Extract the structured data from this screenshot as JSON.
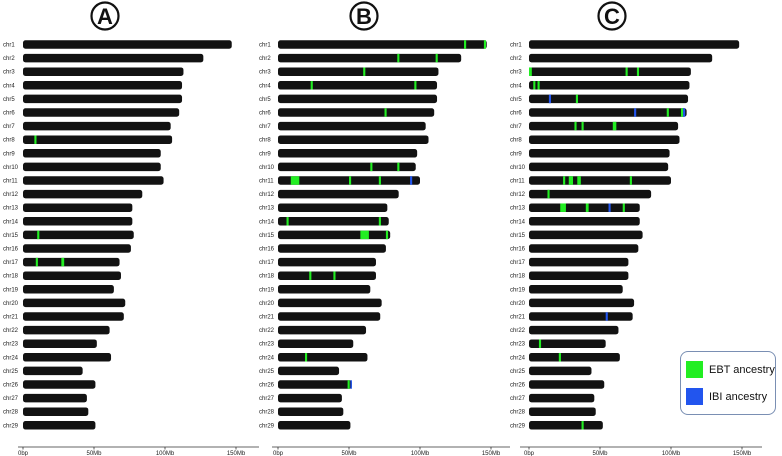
{
  "panels": [
    {
      "letter": "A",
      "chromosomes": [
        {
          "name": "chr1",
          "len": 147,
          "segs": []
        },
        {
          "name": "chr2",
          "len": 127,
          "segs": []
        },
        {
          "name": "chr3",
          "len": 113,
          "segs": []
        },
        {
          "name": "chr4",
          "len": 112,
          "segs": []
        },
        {
          "name": "chr5",
          "len": 112,
          "segs": []
        },
        {
          "name": "chr6",
          "len": 110,
          "segs": []
        },
        {
          "name": "chr7",
          "len": 104,
          "segs": []
        },
        {
          "name": "chr8",
          "len": 105,
          "segs": [
            {
              "s": 8,
              "e": 9.5,
              "t": "EBT"
            }
          ]
        },
        {
          "name": "chr9",
          "len": 97,
          "segs": []
        },
        {
          "name": "chr10",
          "len": 97,
          "segs": []
        },
        {
          "name": "chr11",
          "len": 99,
          "segs": []
        },
        {
          "name": "chr12",
          "len": 84,
          "segs": []
        },
        {
          "name": "chr13",
          "len": 77,
          "segs": []
        },
        {
          "name": "chr14",
          "len": 77,
          "segs": []
        },
        {
          "name": "chr15",
          "len": 78,
          "segs": [
            {
              "s": 10,
              "e": 11.5,
              "t": "EBT"
            }
          ]
        },
        {
          "name": "chr16",
          "len": 76,
          "segs": []
        },
        {
          "name": "chr17",
          "len": 68,
          "segs": [
            {
              "s": 9,
              "e": 10.5,
              "t": "EBT"
            },
            {
              "s": 27,
              "e": 29,
              "t": "EBT"
            }
          ]
        },
        {
          "name": "chr18",
          "len": 69,
          "segs": []
        },
        {
          "name": "chr19",
          "len": 64,
          "segs": []
        },
        {
          "name": "chr20",
          "len": 72,
          "segs": []
        },
        {
          "name": "chr21",
          "len": 71,
          "segs": []
        },
        {
          "name": "chr22",
          "len": 61,
          "segs": []
        },
        {
          "name": "chr23",
          "len": 52,
          "segs": []
        },
        {
          "name": "chr24",
          "len": 62,
          "segs": []
        },
        {
          "name": "chr25",
          "len": 42,
          "segs": []
        },
        {
          "name": "chr26",
          "len": 51,
          "segs": []
        },
        {
          "name": "chr27",
          "len": 45,
          "segs": []
        },
        {
          "name": "chr28",
          "len": 46,
          "segs": []
        },
        {
          "name": "chr29",
          "len": 51,
          "segs": []
        }
      ]
    },
    {
      "letter": "B",
      "chromosomes": [
        {
          "name": "chr1",
          "len": 147,
          "segs": [
            {
              "s": 131,
              "e": 132.5,
              "t": "EBT"
            },
            {
              "s": 145,
              "e": 146.5,
              "t": "EBT"
            }
          ]
        },
        {
          "name": "chr2",
          "len": 129,
          "segs": [
            {
              "s": 84,
              "e": 85.5,
              "t": "EBT"
            },
            {
              "s": 111,
              "e": 112.5,
              "t": "EBT"
            }
          ]
        },
        {
          "name": "chr3",
          "len": 113,
          "segs": [
            {
              "s": 60,
              "e": 61.5,
              "t": "EBT"
            }
          ]
        },
        {
          "name": "chr4",
          "len": 112,
          "segs": [
            {
              "s": 23,
              "e": 24.5,
              "t": "EBT"
            },
            {
              "s": 96,
              "e": 97.5,
              "t": "EBT"
            }
          ]
        },
        {
          "name": "chr5",
          "len": 112,
          "segs": []
        },
        {
          "name": "chr6",
          "len": 110,
          "segs": [
            {
              "s": 75,
              "e": 76.5,
              "t": "EBT"
            }
          ]
        },
        {
          "name": "chr7",
          "len": 104,
          "segs": []
        },
        {
          "name": "chr8",
          "len": 106,
          "segs": []
        },
        {
          "name": "chr9",
          "len": 98,
          "segs": []
        },
        {
          "name": "chr10",
          "len": 97,
          "segs": [
            {
              "s": 65,
              "e": 66.5,
              "t": "EBT"
            },
            {
              "s": 84,
              "e": 85.5,
              "t": "EBT"
            }
          ]
        },
        {
          "name": "chr11",
          "len": 100,
          "segs": [
            {
              "s": 9,
              "e": 15,
              "t": "EBT"
            },
            {
              "s": 50,
              "e": 51.5,
              "t": "EBT"
            },
            {
              "s": 71,
              "e": 72.5,
              "t": "EBT"
            },
            {
              "s": 93,
              "e": 94.5,
              "t": "IBI"
            }
          ]
        },
        {
          "name": "chr12",
          "len": 85,
          "segs": []
        },
        {
          "name": "chr13",
          "len": 77,
          "segs": []
        },
        {
          "name": "chr14",
          "len": 78,
          "segs": [
            {
              "s": 6,
              "e": 7.5,
              "t": "EBT"
            },
            {
              "s": 71,
              "e": 72.5,
              "t": "EBT"
            }
          ]
        },
        {
          "name": "chr15",
          "len": 79,
          "segs": [
            {
              "s": 58,
              "e": 64,
              "t": "EBT"
            },
            {
              "s": 76,
              "e": 77.5,
              "t": "EBT"
            }
          ]
        },
        {
          "name": "chr16",
          "len": 76,
          "segs": []
        },
        {
          "name": "chr17",
          "len": 69,
          "segs": []
        },
        {
          "name": "chr18",
          "len": 69,
          "segs": [
            {
              "s": 22,
              "e": 23.5,
              "t": "EBT"
            },
            {
              "s": 39,
              "e": 40.5,
              "t": "EBT"
            }
          ]
        },
        {
          "name": "chr19",
          "len": 65,
          "segs": []
        },
        {
          "name": "chr20",
          "len": 73,
          "segs": []
        },
        {
          "name": "chr21",
          "len": 72,
          "segs": []
        },
        {
          "name": "chr22",
          "len": 62,
          "segs": []
        },
        {
          "name": "chr23",
          "len": 53,
          "segs": []
        },
        {
          "name": "chr24",
          "len": 63,
          "segs": [
            {
              "s": 19,
              "e": 20.5,
              "t": "EBT"
            }
          ]
        },
        {
          "name": "chr25",
          "len": 43,
          "segs": []
        },
        {
          "name": "chr26",
          "len": 52,
          "segs": [
            {
              "s": 49,
              "e": 50.5,
              "t": "EBT"
            },
            {
              "s": 51,
              "e": 52,
              "t": "IBI"
            }
          ]
        },
        {
          "name": "chr27",
          "len": 45,
          "segs": []
        },
        {
          "name": "chr28",
          "len": 46,
          "segs": []
        },
        {
          "name": "chr29",
          "len": 51,
          "segs": []
        }
      ]
    },
    {
      "letter": "C",
      "chromosomes": [
        {
          "name": "chr1",
          "len": 148,
          "segs": []
        },
        {
          "name": "chr2",
          "len": 129,
          "segs": []
        },
        {
          "name": "chr3",
          "len": 114,
          "segs": [
            {
              "s": 0,
              "e": 2,
              "t": "EBT"
            },
            {
              "s": 68,
              "e": 69.5,
              "t": "EBT"
            },
            {
              "s": 76,
              "e": 77.5,
              "t": "EBT"
            }
          ]
        },
        {
          "name": "chr4",
          "len": 113,
          "segs": [
            {
              "s": 3,
              "e": 4.5,
              "t": "EBT"
            },
            {
              "s": 6,
              "e": 7.5,
              "t": "EBT"
            }
          ]
        },
        {
          "name": "chr5",
          "len": 112,
          "segs": [
            {
              "s": 14,
              "e": 15.5,
              "t": "IBI"
            },
            {
              "s": 33,
              "e": 34.5,
              "t": "EBT"
            }
          ]
        },
        {
          "name": "chr6",
          "len": 111,
          "segs": [
            {
              "s": 74,
              "e": 75.5,
              "t": "IBI"
            },
            {
              "s": 97,
              "e": 98.5,
              "t": "EBT"
            },
            {
              "s": 107,
              "e": 108.5,
              "t": "EBT"
            },
            {
              "s": 108.5,
              "e": 110,
              "t": "IBI"
            }
          ]
        },
        {
          "name": "chr7",
          "len": 105,
          "segs": [
            {
              "s": 32,
              "e": 33.5,
              "t": "EBT"
            },
            {
              "s": 37,
              "e": 38.5,
              "t": "EBT"
            },
            {
              "s": 59,
              "e": 61.5,
              "t": "EBT"
            }
          ]
        },
        {
          "name": "chr8",
          "len": 106,
          "segs": []
        },
        {
          "name": "chr9",
          "len": 99,
          "segs": []
        },
        {
          "name": "chr10",
          "len": 98,
          "segs": []
        },
        {
          "name": "chr11",
          "len": 100,
          "segs": [
            {
              "s": 24,
              "e": 25.5,
              "t": "EBT"
            },
            {
              "s": 28,
              "e": 31,
              "t": "EBT"
            },
            {
              "s": 34,
              "e": 36.5,
              "t": "EBT"
            },
            {
              "s": 71,
              "e": 72.5,
              "t": "EBT"
            }
          ]
        },
        {
          "name": "chr12",
          "len": 86,
          "segs": [
            {
              "s": 13,
              "e": 14.5,
              "t": "EBT"
            }
          ]
        },
        {
          "name": "chr13",
          "len": 78,
          "segs": [
            {
              "s": 22,
              "e": 26,
              "t": "EBT"
            },
            {
              "s": 40,
              "e": 42,
              "t": "EBT"
            },
            {
              "s": 56,
              "e": 57.5,
              "t": "IBI"
            },
            {
              "s": 66,
              "e": 67.5,
              "t": "EBT"
            }
          ]
        },
        {
          "name": "chr14",
          "len": 78,
          "segs": []
        },
        {
          "name": "chr15",
          "len": 80,
          "segs": []
        },
        {
          "name": "chr16",
          "len": 77,
          "segs": []
        },
        {
          "name": "chr17",
          "len": 70,
          "segs": []
        },
        {
          "name": "chr18",
          "len": 70,
          "segs": []
        },
        {
          "name": "chr19",
          "len": 66,
          "segs": []
        },
        {
          "name": "chr20",
          "len": 74,
          "segs": []
        },
        {
          "name": "chr21",
          "len": 73,
          "segs": [
            {
              "s": 54,
              "e": 55.5,
              "t": "IBI"
            }
          ]
        },
        {
          "name": "chr22",
          "len": 63,
          "segs": []
        },
        {
          "name": "chr23",
          "len": 54,
          "segs": [
            {
              "s": 7,
              "e": 8.5,
              "t": "EBT"
            }
          ]
        },
        {
          "name": "chr24",
          "len": 64,
          "segs": [
            {
              "s": 21,
              "e": 22.5,
              "t": "EBT"
            }
          ]
        },
        {
          "name": "chr25",
          "len": 44,
          "segs": []
        },
        {
          "name": "chr26",
          "len": 53,
          "segs": []
        },
        {
          "name": "chr27",
          "len": 46,
          "segs": []
        },
        {
          "name": "chr28",
          "len": 47,
          "segs": []
        },
        {
          "name": "chr29",
          "len": 52,
          "segs": [
            {
              "s": 37,
              "e": 38.5,
              "t": "EBT"
            }
          ]
        }
      ]
    }
  ],
  "axis_ticks": [
    "0bp",
    "50Mb",
    "100Mb",
    "150Mb"
  ],
  "legend": {
    "ebt_label": "EBT ancestry",
    "ibi_label": "IBI ancestry"
  },
  "colors": {
    "chromosome": "#121212",
    "ebt": "#22ee22",
    "ibi": "#2255ee"
  }
}
